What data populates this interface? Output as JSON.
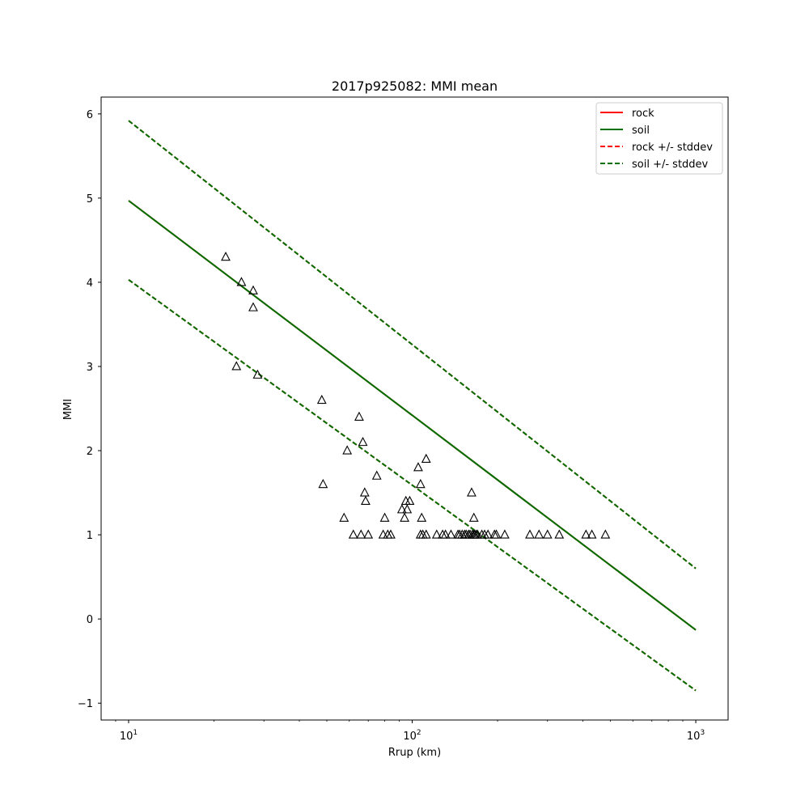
{
  "chart_data": {
    "type": "scatter",
    "title": "2017p925082: MMI mean",
    "xlabel": "Rrup (km)",
    "ylabel": "MMI",
    "xscale": "log",
    "xlim": [
      8,
      1300
    ],
    "ylim": [
      -1.2,
      6.2
    ],
    "x_ticks": [
      {
        "value": 10,
        "base": "10",
        "exp": "1"
      },
      {
        "value": 100,
        "base": "10",
        "exp": "2"
      },
      {
        "value": 1000,
        "base": "10",
        "exp": "3"
      }
    ],
    "y_ticks": [
      -1,
      0,
      1,
      2,
      3,
      4,
      5,
      6
    ],
    "y_tick_labels": [
      "−1",
      "0",
      "1",
      "2",
      "3",
      "4",
      "5",
      "6"
    ],
    "grid": false,
    "legend_position": "top-right",
    "series": [
      {
        "name": "rock",
        "style": "solid",
        "color": "#ff0000",
        "x": [
          10,
          1000
        ],
        "y": [
          4.97,
          -0.13
        ]
      },
      {
        "name": "soil",
        "style": "solid",
        "color": "#007000",
        "x": [
          10,
          1000
        ],
        "y": [
          4.97,
          -0.13
        ]
      },
      {
        "name": "rock +/- stddev",
        "style": "dashed",
        "color": "#ff0000",
        "x": [
          10,
          1000
        ],
        "y": [
          5.92,
          0.6
        ],
        "x2": [
          10,
          1000
        ],
        "y2": [
          4.03,
          -0.85
        ]
      },
      {
        "name": "soil +/- stddev",
        "style": "dashed",
        "color": "#007000",
        "x": [
          10,
          1000
        ],
        "y": [
          5.92,
          0.6
        ],
        "x2": [
          10,
          1000
        ],
        "y2": [
          4.03,
          -0.85
        ]
      }
    ],
    "points": {
      "marker": "triangle",
      "x": [
        22,
        25,
        27.5,
        27.5,
        24,
        28.5,
        48,
        48.5,
        65,
        67,
        59,
        68,
        68.5,
        57.5,
        75,
        62,
        66,
        70,
        79,
        80,
        82,
        84,
        92,
        94,
        95,
        96,
        98,
        105,
        107,
        108,
        112,
        107,
        109,
        112,
        122,
        128,
        131,
        137,
        145,
        147,
        150,
        153,
        155,
        158,
        160,
        163,
        165,
        166,
        168,
        170,
        176,
        180,
        185,
        195,
        198,
        212,
        260,
        280,
        300,
        330,
        410,
        430,
        480,
        162,
        165
      ],
      "y": [
        4.3,
        4.0,
        3.9,
        3.7,
        3.0,
        2.9,
        2.6,
        1.6,
        2.4,
        2.1,
        2.0,
        1.5,
        1.4,
        1.2,
        1.7,
        1.0,
        1.0,
        1.0,
        1.0,
        1.2,
        1.0,
        1.0,
        1.3,
        1.2,
        1.4,
        1.3,
        1.4,
        1.8,
        1.6,
        1.2,
        1.9,
        1.0,
        1.0,
        1.0,
        1.0,
        1.0,
        1.0,
        1.0,
        1.0,
        1.0,
        1.0,
        1.0,
        1.0,
        1.0,
        1.0,
        1.0,
        1.0,
        1.0,
        1.0,
        1.0,
        1.0,
        1.0,
        1.0,
        1.0,
        1.0,
        1.0,
        1.0,
        1.0,
        1.0,
        1.0,
        1.0,
        1.0,
        1.0,
        1.5,
        1.2
      ]
    }
  }
}
